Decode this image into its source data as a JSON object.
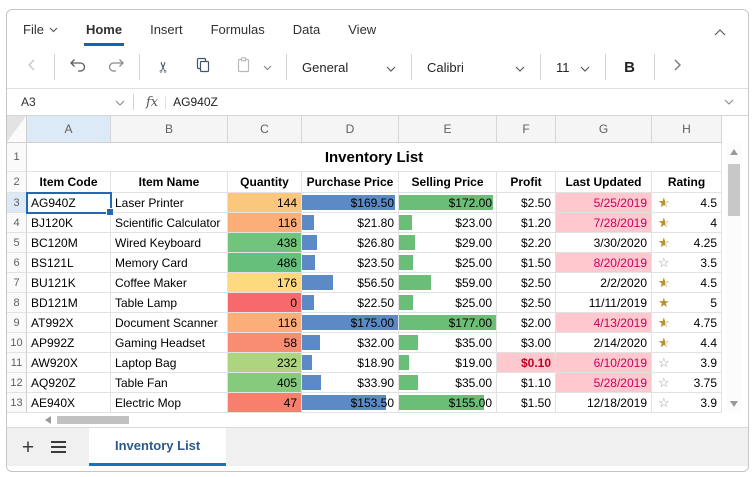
{
  "menu": {
    "items": [
      "File",
      "Home",
      "Insert",
      "Formulas",
      "Data",
      "View"
    ],
    "active": "Home"
  },
  "toolbar": {
    "number_format": "General",
    "font_name": "Calibri",
    "font_size": "11",
    "bold_label": "B"
  },
  "formula_bar": {
    "cell_ref": "A3",
    "fx_label": "fx",
    "content": "AG940Z"
  },
  "grid": {
    "column_letters": [
      "A",
      "B",
      "C",
      "D",
      "E",
      "F",
      "G",
      "H"
    ],
    "selected_column": "A",
    "selected_row": 3,
    "title": "Inventory List",
    "title_row_number": "1",
    "header_row_number": "2",
    "headers": [
      "Item Code",
      "Item Name",
      "Quantity",
      "Purchase Price",
      "Selling Price",
      "Profit",
      "Last Updated",
      "Rating"
    ],
    "rows": [
      {
        "n": "3",
        "code": "AG940Z",
        "name": "Laser Printer",
        "qty": "144",
        "qty_fill": "#FAC77D",
        "purchase": "$169.50",
        "purchase_bar": 0.97,
        "selling": "$172.00",
        "selling_bar": 0.97,
        "profit": "$2.50",
        "profit_alert": false,
        "updated": "5/25/2019",
        "updated_alert": true,
        "star": "half",
        "rating": "4.5",
        "selected": true
      },
      {
        "n": "4",
        "code": "BJ120K",
        "name": "Scientific Calculator",
        "qty": "116",
        "qty_fill": "#FBAE77",
        "purchase": "$21.80",
        "purchase_bar": 0.125,
        "selling": "$23.00",
        "selling_bar": 0.13,
        "profit": "$1.20",
        "profit_alert": false,
        "updated": "7/28/2019",
        "updated_alert": true,
        "star": "half",
        "rating": "4",
        "selected": false
      },
      {
        "n": "5",
        "code": "BC120M",
        "name": "Wired Keyboard",
        "qty": "438",
        "qty_fill": "#71C47B",
        "purchase": "$26.80",
        "purchase_bar": 0.153,
        "selling": "$29.00",
        "selling_bar": 0.164,
        "profit": "$2.20",
        "profit_alert": false,
        "updated": "3/30/2020",
        "updated_alert": false,
        "star": "half",
        "rating": "4.25",
        "selected": false
      },
      {
        "n": "6",
        "code": "BS121L",
        "name": "Memory Card",
        "qty": "486",
        "qty_fill": "#66C07B",
        "purchase": "$23.50",
        "purchase_bar": 0.134,
        "selling": "$25.00",
        "selling_bar": 0.141,
        "profit": "$1.50",
        "profit_alert": false,
        "updated": "8/20/2019",
        "updated_alert": true,
        "star": "empty",
        "rating": "3.5",
        "selected": false
      },
      {
        "n": "7",
        "code": "BU121K",
        "name": "Coffee Maker",
        "qty": "176",
        "qty_fill": "#FDD980",
        "purchase": "$56.50",
        "purchase_bar": 0.323,
        "selling": "$59.00",
        "selling_bar": 0.333,
        "profit": "$2.50",
        "profit_alert": false,
        "updated": "2/2/2020",
        "updated_alert": false,
        "star": "half",
        "rating": "4.5",
        "selected": false
      },
      {
        "n": "8",
        "code": "BD121M",
        "name": "Table Lamp",
        "qty": "0",
        "qty_fill": "#F8696B",
        "purchase": "$22.50",
        "purchase_bar": 0.129,
        "selling": "$25.00",
        "selling_bar": 0.141,
        "profit": "$2.50",
        "profit_alert": false,
        "updated": "11/11/2019",
        "updated_alert": false,
        "star": "full",
        "rating": "5",
        "selected": false
      },
      {
        "n": "9",
        "code": "AT992X",
        "name": "Document Scanner",
        "qty": "116",
        "qty_fill": "#FBAE77",
        "purchase": "$175.00",
        "purchase_bar": 1,
        "selling": "$177.00",
        "selling_bar": 1,
        "profit": "$2.00",
        "profit_alert": false,
        "updated": "4/13/2019",
        "updated_alert": true,
        "star": "half",
        "rating": "4.75",
        "selected": false
      },
      {
        "n": "10",
        "code": "AP992Z",
        "name": "Gaming Headset",
        "qty": "58",
        "qty_fill": "#F98D71",
        "purchase": "$32.00",
        "purchase_bar": 0.183,
        "selling": "$35.00",
        "selling_bar": 0.198,
        "profit": "$3.00",
        "profit_alert": false,
        "updated": "2/14/2020",
        "updated_alert": false,
        "star": "half",
        "rating": "4.4",
        "selected": false
      },
      {
        "n": "11",
        "code": "AW920X",
        "name": "Laptop Bag",
        "qty": "232",
        "qty_fill": "#ADD47F",
        "purchase": "$18.90",
        "purchase_bar": 0.108,
        "selling": "$19.00",
        "selling_bar": 0.107,
        "profit": "$0.10",
        "profit_alert": true,
        "updated": "6/10/2019",
        "updated_alert": true,
        "star": "empty",
        "rating": "3.9",
        "selected": false
      },
      {
        "n": "12",
        "code": "AQ920Z",
        "name": "Table Fan",
        "qty": "405",
        "qty_fill": "#86CB7D",
        "purchase": "$33.90",
        "purchase_bar": 0.194,
        "selling": "$35.00",
        "selling_bar": 0.198,
        "profit": "$1.10",
        "profit_alert": false,
        "updated": "5/28/2019",
        "updated_alert": true,
        "star": "empty",
        "rating": "3.75",
        "selected": false
      },
      {
        "n": "13",
        "code": "AE940X",
        "name": "Electric Mop",
        "qty": "47",
        "qty_fill": "#F87E6E",
        "purchase": "$153.50",
        "purchase_bar": 0.877,
        "selling": "$155.00",
        "selling_bar": 0.876,
        "profit": "$1.50",
        "profit_alert": false,
        "updated": "12/18/2019",
        "updated_alert": false,
        "star": "empty",
        "rating": "3.9",
        "selected": false
      }
    ]
  },
  "sheet_bar": {
    "active_tab": "Inventory List"
  },
  "colors": {
    "accent_blue": "#1266B1",
    "selection_blue": "#2268B2",
    "bar_blue": "#5B8AC6",
    "bar_green": "#6BBE77",
    "alert_fill": "#FFC7CE",
    "alert_date_text": "#C7005D",
    "alert_profit_text": "#C00021",
    "star_gold": "#B8902F",
    "star_empty": "#9B9B9B",
    "tab_underline": "#1073C6",
    "column_highlight": "#DCE9F7"
  }
}
